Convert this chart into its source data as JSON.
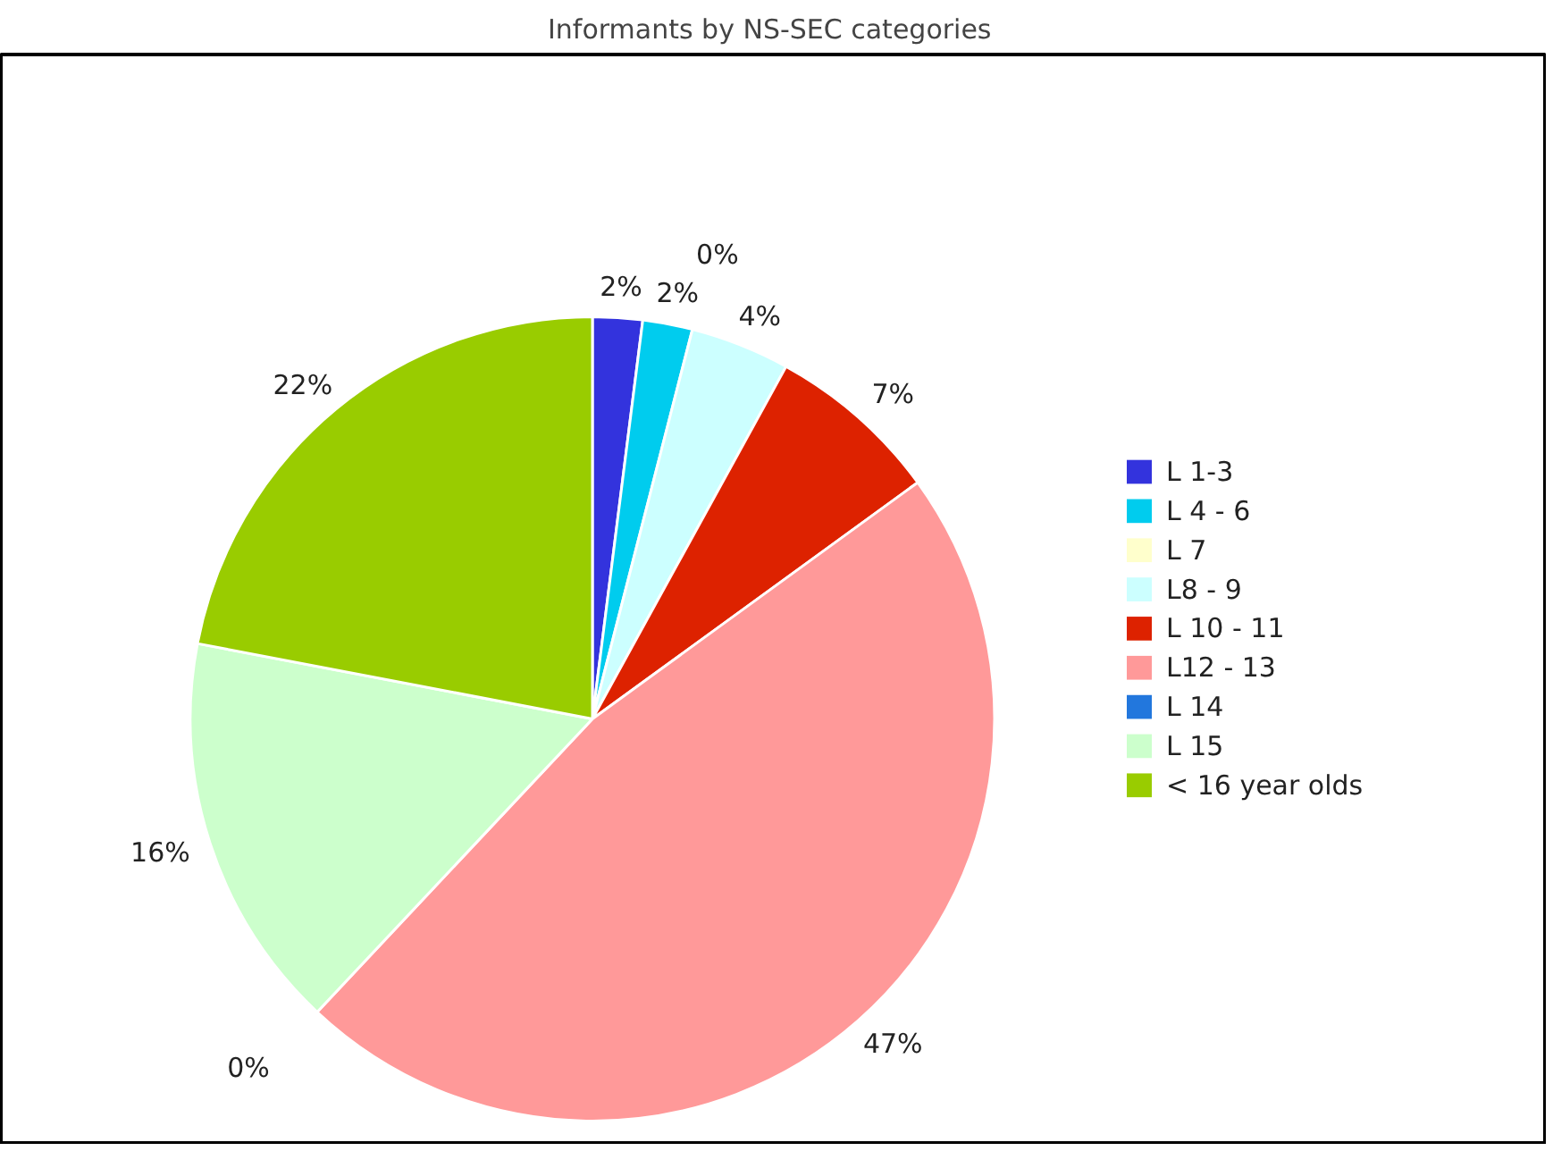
{
  "chart_data": {
    "type": "pie",
    "title": "Informants  by NS-SEC categories",
    "categories": [
      "L 1-3",
      "L 4 - 6",
      "L 7",
      "L8 - 9",
      "L 10 - 11",
      "L12 - 13",
      "L 14",
      "L 15",
      "< 16 year olds"
    ],
    "values": [
      2,
      2,
      0,
      4,
      7,
      47,
      0,
      16,
      22
    ],
    "value_labels": [
      "2%",
      "2%",
      "0%",
      "4%",
      "7%",
      "47%",
      "0%",
      "16%",
      "22%"
    ],
    "colors": [
      "#3333dd",
      "#00ccee",
      "#ffffcc",
      "#ccffff",
      "#dd2200",
      "#ff9999",
      "#2277dd",
      "#ccffcc",
      "#99cc00"
    ],
    "legend": "right"
  }
}
